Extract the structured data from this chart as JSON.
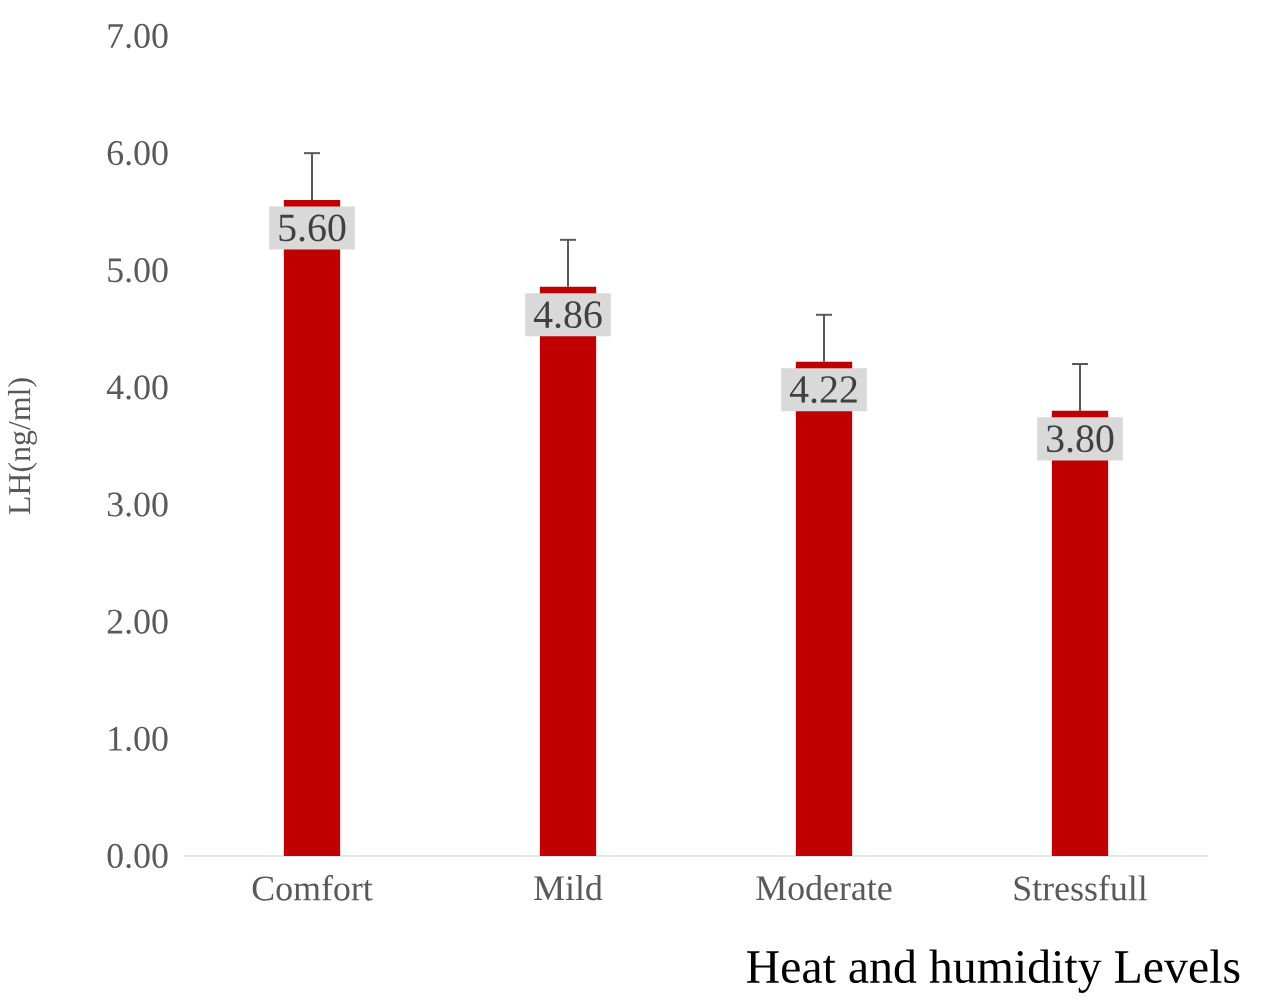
{
  "chart_data": {
    "type": "bar",
    "xlabel": "Heat and humidity Levels",
    "ylabel": "LH(ng/ml)",
    "categories": [
      "Comfort",
      "Mild",
      "Moderate",
      "Stressfull"
    ],
    "values": [
      5.6,
      4.86,
      4.22,
      3.8
    ],
    "color": "#c00000",
    "errors": [
      [
        5.6,
        6.0
      ],
      [
        4.86,
        5.26
      ],
      [
        4.22,
        4.62
      ],
      [
        3.8,
        4.2
      ]
    ],
    "value_labels": [
      "5.60",
      "4.86",
      "4.22",
      "3.80"
    ],
    "ylim": [
      0,
      7
    ],
    "yticks": [
      {
        "value": 0,
        "label": "0.00"
      },
      {
        "value": 1,
        "label": "1.00"
      },
      {
        "value": 2,
        "label": "2.00"
      },
      {
        "value": 3,
        "label": "3.00"
      },
      {
        "value": 4,
        "label": "4.00"
      },
      {
        "value": 5,
        "label": "5.00"
      },
      {
        "value": 6,
        "label": "6.00"
      },
      {
        "value": 7,
        "label": "7.00"
      }
    ],
    "grid": false
  }
}
